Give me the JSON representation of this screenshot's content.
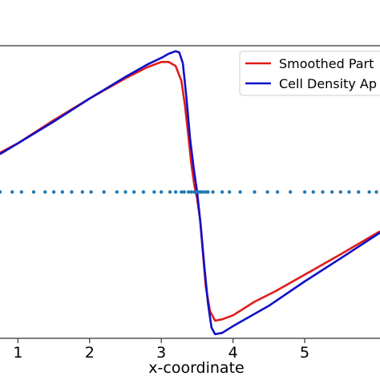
{
  "chart_data": {
    "type": "line",
    "xlabel": "x-coordinate",
    "ylabel": "",
    "title": "",
    "xlim": [
      0.75,
      6.05
    ],
    "ylim": [
      -1.08,
      1.08
    ],
    "xticks": [
      1,
      2,
      3,
      4,
      5
    ],
    "xtick_labels": [
      "1",
      "2",
      "3",
      "4",
      "5"
    ],
    "grid": false,
    "legend": {
      "placement": "top-right",
      "entries": [
        "Smoothed Part",
        "Cell Density Ap"
      ]
    },
    "series": [
      {
        "name": "Smoothed Part",
        "color": "#e01b1b",
        "x": [
          0.75,
          1.0,
          1.5,
          2.0,
          2.5,
          2.8,
          3.0,
          3.1,
          3.2,
          3.28,
          3.33,
          3.38,
          3.42,
          3.46,
          3.5,
          3.54,
          3.58,
          3.62,
          3.68,
          3.75,
          3.85,
          4.0,
          4.3,
          4.6,
          5.0,
          5.5,
          6.05
        ],
        "y": [
          0.29,
          0.36,
          0.53,
          0.69,
          0.84,
          0.92,
          0.96,
          0.96,
          0.93,
          0.82,
          0.64,
          0.4,
          0.2,
          0.05,
          -0.05,
          -0.2,
          -0.45,
          -0.7,
          -0.88,
          -0.95,
          -0.94,
          -0.91,
          -0.81,
          -0.73,
          -0.61,
          -0.46,
          -0.29
        ]
      },
      {
        "name": "Cell Density Ap",
        "color": "#1010c8",
        "x": [
          0.75,
          1.0,
          1.5,
          2.0,
          2.5,
          2.8,
          3.0,
          3.1,
          3.2,
          3.25,
          3.3,
          3.35,
          3.4,
          3.45,
          3.5,
          3.55,
          3.6,
          3.65,
          3.7,
          3.75,
          3.85,
          4.0,
          4.5,
          5.0,
          5.5,
          6.05
        ],
        "y": [
          0.28,
          0.36,
          0.52,
          0.69,
          0.85,
          0.94,
          0.99,
          1.02,
          1.04,
          1.03,
          0.95,
          0.7,
          0.4,
          0.18,
          0.0,
          -0.25,
          -0.55,
          -0.82,
          -1.0,
          -1.05,
          -1.04,
          -0.99,
          -0.84,
          -0.66,
          -0.49,
          -0.3
        ]
      },
      {
        "name": "",
        "color": "#1f77b4",
        "marker": "dot",
        "y_constant": 0.0,
        "x": [
          0.75,
          0.92,
          1.05,
          1.22,
          1.38,
          1.5,
          1.62,
          1.75,
          1.9,
          2.02,
          2.2,
          2.38,
          2.5,
          2.62,
          2.75,
          2.9,
          3.0,
          3.12,
          3.2,
          3.28,
          3.32,
          3.38,
          3.42,
          3.46,
          3.49,
          3.52,
          3.55,
          3.58,
          3.62,
          3.65,
          3.72,
          3.85,
          3.95,
          4.1,
          4.3,
          4.48,
          4.62,
          4.8,
          5.0,
          5.12,
          5.25,
          5.38,
          5.5,
          5.62,
          5.75,
          5.9,
          6.0
        ]
      }
    ]
  }
}
